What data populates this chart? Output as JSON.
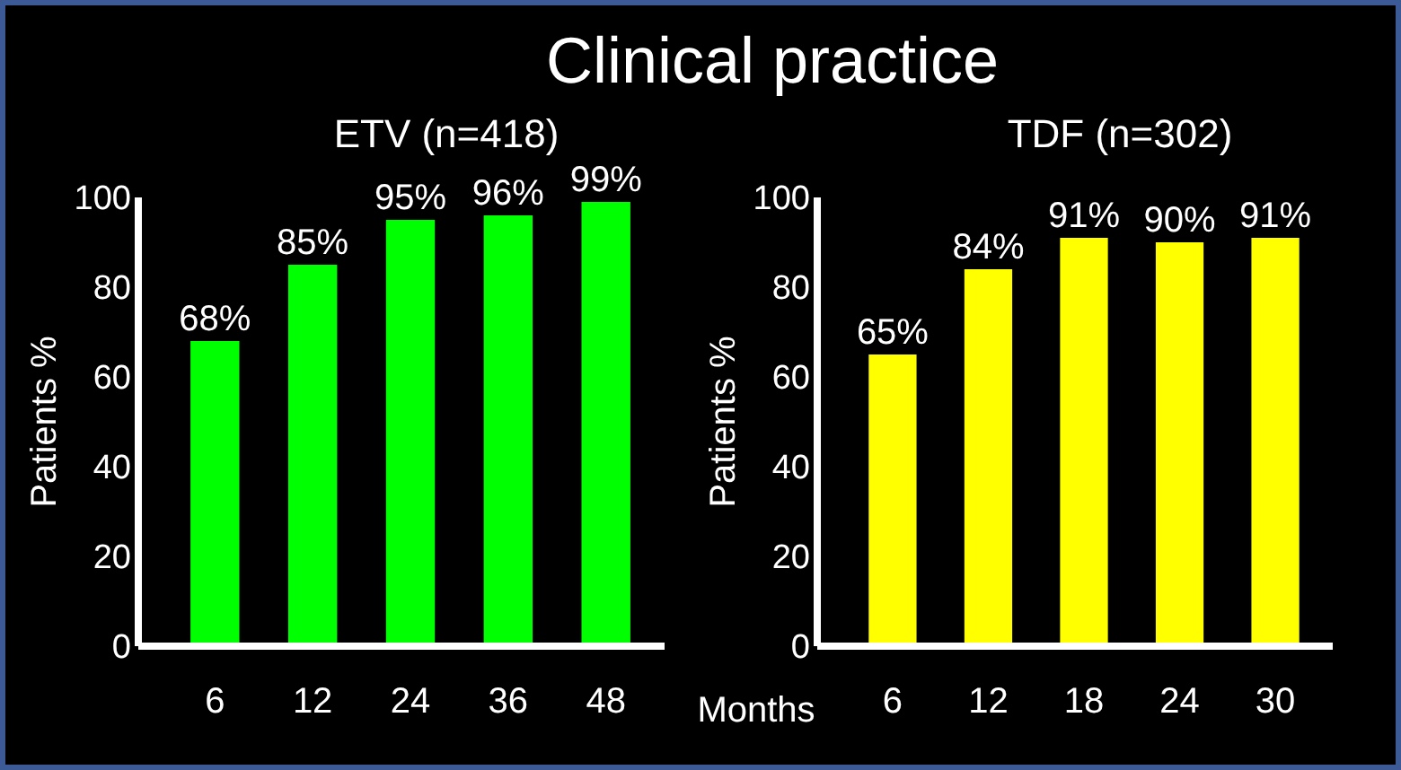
{
  "chart_data": [
    {
      "type": "bar",
      "title": "Clinical practice",
      "subtitle": "ETV (n=418)",
      "ylabel": "Patients %",
      "categories": [
        "6",
        "12",
        "24",
        "36",
        "48"
      ],
      "values": [
        68,
        85,
        95,
        96,
        99
      ],
      "color": "#00ff00",
      "ylim": [
        0,
        100
      ],
      "yticks": [
        0,
        20,
        40,
        60,
        80,
        100
      ],
      "data_labels": true,
      "value_labels": [
        "68%",
        "85%",
        "95%",
        "96%",
        "99%"
      ]
    },
    {
      "type": "bar",
      "title": "TDF (n=302)",
      "ylabel": "Patients %",
      "xlabel": "Months",
      "categories": [
        "6",
        "12",
        "18",
        "24",
        "30"
      ],
      "values": [
        65,
        84,
        91,
        90,
        91
      ],
      "color": "#ffff00",
      "ylim": [
        0,
        100
      ],
      "yticks": [
        0,
        20,
        40,
        60,
        80,
        100
      ],
      "data_labels": true,
      "value_labels": [
        "65%",
        "84%",
        "91%",
        "90%",
        "91%"
      ]
    }
  ]
}
